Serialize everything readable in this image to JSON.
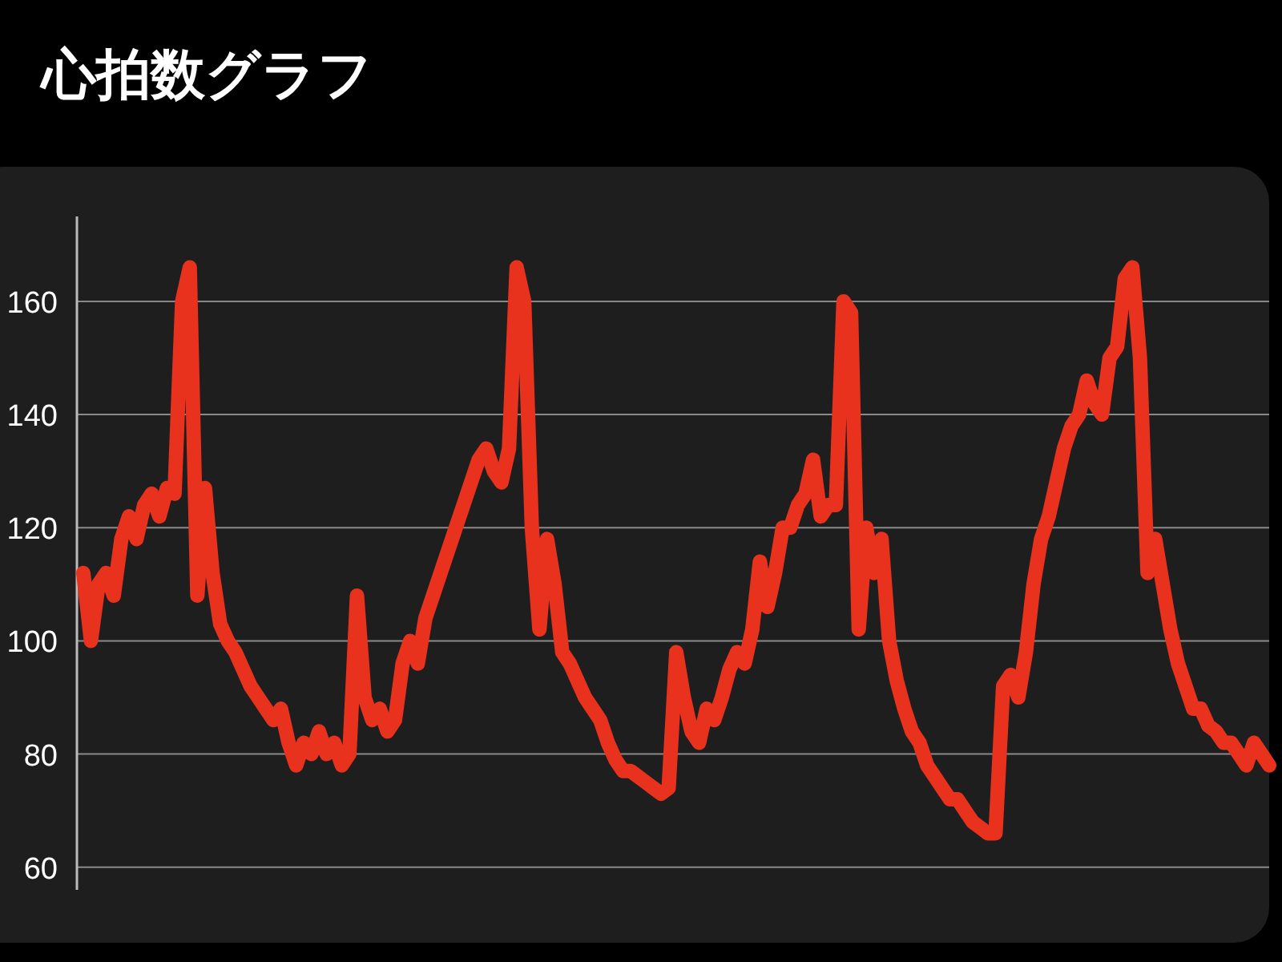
{
  "chart_data": {
    "type": "line",
    "title": "心拍数グラフ",
    "categories": [
      null,
      null,
      null,
      null,
      null,
      null,
      null,
      null,
      null,
      null,
      null,
      null,
      null,
      null,
      null,
      null,
      null,
      null,
      null,
      null,
      null,
      null,
      null,
      null,
      null,
      null,
      null,
      null,
      null,
      null,
      null,
      null,
      null,
      null,
      null,
      null,
      null,
      null,
      null,
      null,
      null,
      null,
      null,
      null,
      null,
      null,
      null,
      null,
      null,
      null,
      null,
      null,
      null,
      null,
      null,
      null,
      null,
      null,
      null,
      null,
      null,
      null,
      null,
      null,
      null,
      null,
      null,
      null,
      null,
      null,
      null,
      null,
      null,
      null,
      null,
      null,
      null,
      null,
      null,
      null,
      null,
      null,
      null,
      null,
      null,
      null,
      null,
      null,
      null,
      null,
      null,
      null,
      null,
      null,
      null,
      null,
      null,
      null,
      null,
      null,
      null,
      null,
      null,
      null,
      null,
      null,
      null,
      null,
      null,
      null,
      null,
      null,
      null,
      null,
      null,
      null,
      null,
      null,
      null,
      null,
      null,
      null,
      null,
      null,
      null,
      null,
      null,
      null,
      null,
      null,
      null,
      null,
      null,
      null,
      null,
      null,
      null,
      null,
      null,
      null,
      null,
      null,
      null,
      null,
      null,
      null,
      null,
      null,
      null,
      null,
      null,
      null,
      null,
      null,
      null,
      null,
      null
    ],
    "series": [
      {
        "color": "#e8321e",
        "values": [
          112,
          100,
          110,
          112,
          108,
          118,
          122,
          118,
          124,
          126,
          122,
          127,
          126,
          160,
          166,
          108,
          127,
          112,
          103,
          100,
          98,
          95,
          92,
          90,
          88,
          86,
          88,
          82,
          78,
          82,
          80,
          84,
          80,
          82,
          78,
          80,
          108,
          90,
          86,
          88,
          84,
          86,
          96,
          100,
          96,
          104,
          108,
          112,
          116,
          120,
          124,
          128,
          132,
          134,
          130,
          128,
          134,
          166,
          160,
          120,
          102,
          118,
          110,
          98,
          96,
          93,
          90,
          88,
          86,
          82,
          79,
          77,
          77,
          76,
          75,
          74,
          73,
          74,
          98,
          90,
          84,
          82,
          88,
          86,
          90,
          95,
          98,
          96,
          102,
          114,
          106,
          112,
          120,
          120,
          124,
          126,
          132,
          122,
          124,
          124,
          160,
          158,
          102,
          120,
          112,
          118,
          100,
          93,
          88,
          84,
          82,
          78,
          76,
          74,
          72,
          72,
          70,
          68,
          67,
          66,
          66,
          92,
          94,
          90,
          98,
          110,
          118,
          122,
          128,
          134,
          138,
          140,
          146,
          142,
          140,
          150,
          152,
          164,
          166,
          150,
          112,
          118,
          110,
          102,
          96,
          92,
          88,
          88,
          85,
          84,
          82,
          82,
          80,
          78,
          82,
          80,
          78
        ]
      }
    ],
    "ylim": [
      56,
      175
    ],
    "yticks": [
      60,
      80,
      100,
      120,
      140,
      160
    ],
    "grid": "y",
    "tick_labels": "y",
    "line_style": "solid"
  }
}
